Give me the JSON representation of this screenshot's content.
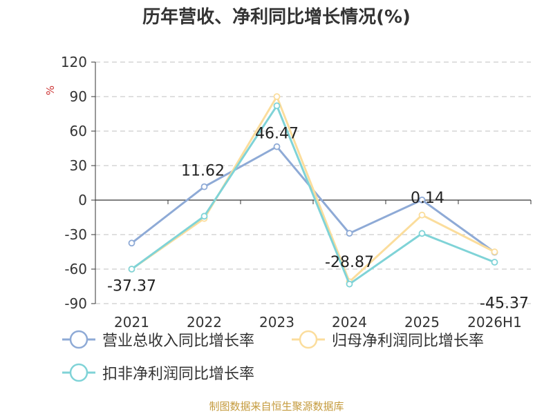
{
  "chart_data": {
    "type": "line",
    "title": "历年营收、净利同比增长情况(%)",
    "ylabel": "%",
    "xlabel": "",
    "categories": [
      "2021",
      "2022",
      "2023",
      "2024",
      "2025",
      "2026H1"
    ],
    "ylim": [
      -90,
      120
    ],
    "yticks": [
      120,
      90,
      60,
      30,
      0,
      -30,
      -60,
      -90
    ],
    "grid": true,
    "legend_position": "bottom",
    "series": [
      {
        "name": "营业总收入同比增长率",
        "color": "#8eaad6",
        "values": [
          -37.37,
          11.62,
          46.47,
          -28.87,
          0.14,
          -45.37
        ],
        "labels": [
          "-37.37",
          "11.62",
          "46.47",
          "-28.87",
          "0.14",
          "-45.37"
        ]
      },
      {
        "name": "归母净利润同比增长率",
        "color": "#fbdd9c",
        "values": [
          -60,
          -16,
          90,
          -71,
          -13,
          -45
        ],
        "labels": []
      },
      {
        "name": "扣非净利润同比增长率",
        "color": "#7fd3d7",
        "values": [
          -60,
          -14,
          82,
          -73,
          -29,
          -54
        ],
        "labels": []
      }
    ]
  },
  "source": "制图数据来自恒生聚源数据库"
}
